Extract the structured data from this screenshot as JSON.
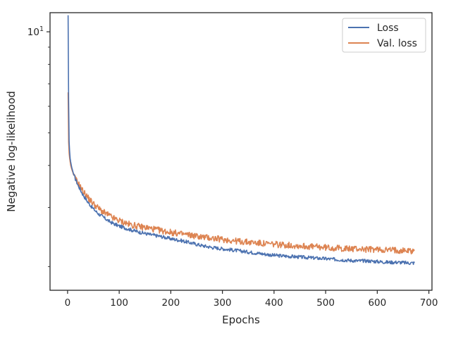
{
  "chart_data": {
    "type": "line",
    "title": "",
    "xlabel": "Epochs",
    "ylabel": "Negative log-likelihood",
    "xlim": [
      -34,
      706
    ],
    "ylim": [
      1.7,
      11.4
    ],
    "yscale": "log",
    "grid": false,
    "legend_position": "top-right",
    "x_ticks": [
      0,
      100,
      200,
      300,
      400,
      500,
      600,
      700
    ],
    "x_tick_labels": [
      "0",
      "100",
      "200",
      "300",
      "400",
      "500",
      "600",
      "700"
    ],
    "y_major_tick_value": 10,
    "y_major_tick_base": "10",
    "y_major_tick_exponent": "1",
    "y_minor_ticks": [
      2,
      3,
      4,
      5,
      6,
      7,
      8,
      9
    ],
    "series": [
      {
        "name": "Loss",
        "color": "#4c72b0",
        "x": [
          1,
          2,
          3,
          4,
          5,
          6,
          8,
          10,
          12,
          15,
          20,
          25,
          30,
          40,
          50,
          60,
          70,
          80,
          90,
          100,
          120,
          140,
          160,
          180,
          200,
          220,
          240,
          260,
          280,
          300,
          320,
          340,
          360,
          380,
          400,
          420,
          440,
          460,
          480,
          500,
          520,
          540,
          560,
          580,
          600,
          620,
          640,
          660,
          672
        ],
        "y": [
          11.2,
          6.2,
          4.7,
          4.4,
          4.2,
          4.1,
          3.95,
          3.85,
          3.75,
          3.65,
          3.5,
          3.38,
          3.27,
          3.1,
          2.97,
          2.87,
          2.8,
          2.73,
          2.68,
          2.64,
          2.58,
          2.53,
          2.49,
          2.46,
          2.42,
          2.39,
          2.35,
          2.31,
          2.28,
          2.26,
          2.24,
          2.22,
          2.2,
          2.18,
          2.16,
          2.15,
          2.14,
          2.13,
          2.12,
          2.11,
          2.1,
          2.09,
          2.08,
          2.08,
          2.07,
          2.06,
          2.06,
          2.05,
          2.05
        ]
      },
      {
        "name": "Val. loss",
        "color": "#dd8452",
        "x": [
          1,
          2,
          3,
          4,
          5,
          6,
          8,
          10,
          12,
          15,
          20,
          25,
          30,
          40,
          50,
          60,
          70,
          80,
          90,
          100,
          120,
          140,
          160,
          180,
          200,
          220,
          240,
          260,
          280,
          300,
          320,
          340,
          360,
          380,
          400,
          420,
          440,
          460,
          480,
          500,
          520,
          540,
          560,
          580,
          600,
          620,
          640,
          660,
          672
        ],
        "y": [
          6.6,
          4.7,
          4.35,
          4.2,
          4.1,
          4.0,
          3.9,
          3.82,
          3.74,
          3.65,
          3.55,
          3.45,
          3.35,
          3.2,
          3.08,
          2.98,
          2.9,
          2.84,
          2.78,
          2.74,
          2.67,
          2.63,
          2.6,
          2.56,
          2.53,
          2.5,
          2.48,
          2.45,
          2.43,
          2.41,
          2.39,
          2.37,
          2.36,
          2.34,
          2.33,
          2.32,
          2.31,
          2.3,
          2.29,
          2.28,
          2.27,
          2.26,
          2.26,
          2.25,
          2.25,
          2.24,
          2.24,
          2.23,
          2.23
        ]
      }
    ]
  }
}
